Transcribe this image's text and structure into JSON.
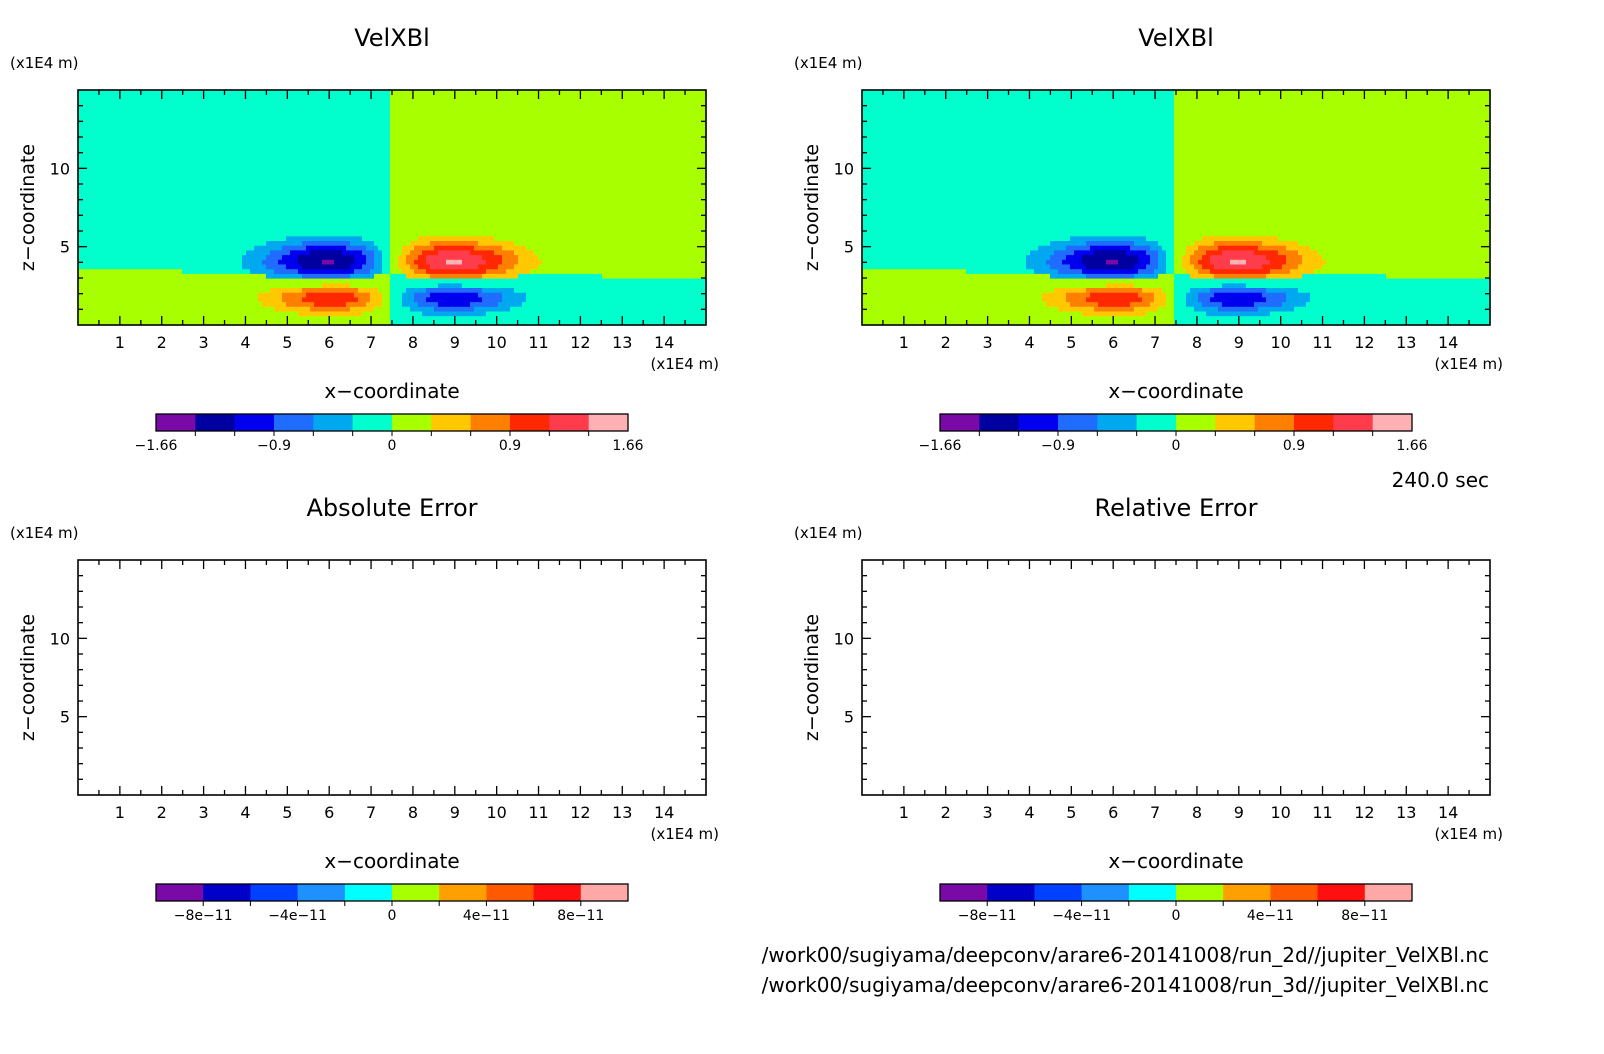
{
  "time_label": "240.0 sec",
  "file_lines": [
    "/work00/sugiyama/deepconv/arare6-20141008/run_2d//jupiter_VelXBl.nc",
    "/work00/sugiyama/deepconv/arare6-20141008/run_3d//jupiter_VelXBl.nc"
  ],
  "panels": [
    {
      "title": "VelXBl",
      "xlabel": "x−coordinate",
      "ylabel": "z−coordinate",
      "xunit": "(x1E4 m)",
      "yunit": "(x1E4 m)"
    },
    {
      "title": "VelXBl",
      "xlabel": "x−coordinate",
      "ylabel": "z−coordinate",
      "xunit": "(x1E4 m)",
      "yunit": "(x1E4 m)"
    },
    {
      "title": "Absolute Error",
      "xlabel": "x−coordinate",
      "ylabel": "z−coordinate",
      "xunit": "(x1E4 m)",
      "yunit": "(x1E4 m)"
    },
    {
      "title": "Relative Error",
      "xlabel": "x−coordinate",
      "ylabel": "z−coordinate",
      "xunit": "(x1E4 m)",
      "yunit": "(x1E4 m)"
    }
  ],
  "chart_data": [
    {
      "type": "heatmap",
      "title": "VelXBl",
      "xlabel": "x−coordinate",
      "ylabel": "z−coordinate",
      "xlim": [
        0,
        15
      ],
      "ylim": [
        0,
        15
      ],
      "x_ticks": [
        "1",
        "2",
        "3",
        "4",
        "5",
        "6",
        "7",
        "8",
        "9",
        "10",
        "11",
        "12",
        "13",
        "14"
      ],
      "y_ticks": [
        "5",
        "10"
      ],
      "levels": [
        -1.66,
        -1.5,
        -1.2,
        -0.9,
        -0.6,
        -0.3,
        0,
        0.3,
        0.6,
        0.9,
        1.2,
        1.5,
        1.66
      ],
      "colorbar_labels": [
        "−1.66",
        "−0.9",
        "0",
        "0.9",
        "1.66"
      ],
      "colors": [
        "#7a0aa8",
        "#0000a0",
        "#0000ee",
        "#1f6cff",
        "#00a8f0",
        "#00ffcc",
        "#a8ff00",
        "#ffc800",
        "#ff8000",
        "#ff2800",
        "#ff3c4c",
        "#ffb0b4"
      ]
    },
    {
      "type": "heatmap",
      "title": "VelXBl",
      "xlabel": "x−coordinate",
      "ylabel": "z−coordinate",
      "xlim": [
        0,
        15
      ],
      "ylim": [
        0,
        15
      ],
      "x_ticks": [
        "1",
        "2",
        "3",
        "4",
        "5",
        "6",
        "7",
        "8",
        "9",
        "10",
        "11",
        "12",
        "13",
        "14"
      ],
      "y_ticks": [
        "5",
        "10"
      ],
      "levels": [
        -1.66,
        -1.5,
        -1.2,
        -0.9,
        -0.6,
        -0.3,
        0,
        0.3,
        0.6,
        0.9,
        1.2,
        1.5,
        1.66
      ],
      "colorbar_labels": [
        "−1.66",
        "−0.9",
        "0",
        "0.9",
        "1.66"
      ],
      "colors": [
        "#7a0aa8",
        "#0000a0",
        "#0000ee",
        "#1f6cff",
        "#00a8f0",
        "#00ffcc",
        "#a8ff00",
        "#ffc800",
        "#ff8000",
        "#ff2800",
        "#ff3c4c",
        "#ffb0b4"
      ]
    },
    {
      "type": "heatmap",
      "title": "Absolute Error",
      "xlabel": "x−coordinate",
      "ylabel": "z−coordinate",
      "xlim": [
        0,
        15
      ],
      "ylim": [
        0,
        15
      ],
      "x_ticks": [
        "1",
        "2",
        "3",
        "4",
        "5",
        "6",
        "7",
        "8",
        "9",
        "10",
        "11",
        "12",
        "13",
        "14"
      ],
      "y_ticks": [
        "5",
        "10"
      ],
      "levels": [
        -1e-10,
        -8e-11,
        -6e-11,
        -4e-11,
        -2e-11,
        0,
        2e-11,
        4e-11,
        6e-11,
        8e-11,
        1e-10
      ],
      "colorbar_labels": [
        "−8e−11",
        "−4e−11",
        "0",
        "4e−11",
        "8e−11"
      ],
      "colors": [
        "#7a0aa8",
        "#0000c8",
        "#0040ff",
        "#1e90ff",
        "#00ffff",
        "#a8ff00",
        "#ffa000",
        "#ff5a00",
        "#ff1010",
        "#ffa8a8"
      ]
    },
    {
      "type": "heatmap",
      "title": "Relative Error",
      "xlabel": "x−coordinate",
      "ylabel": "z−coordinate",
      "xlim": [
        0,
        15
      ],
      "ylim": [
        0,
        15
      ],
      "x_ticks": [
        "1",
        "2",
        "3",
        "4",
        "5",
        "6",
        "7",
        "8",
        "9",
        "10",
        "11",
        "12",
        "13",
        "14"
      ],
      "y_ticks": [
        "5",
        "10"
      ],
      "levels": [
        -1e-10,
        -8e-11,
        -6e-11,
        -4e-11,
        -2e-11,
        0,
        2e-11,
        4e-11,
        6e-11,
        8e-11,
        1e-10
      ],
      "colorbar_labels": [
        "−8e−11",
        "−4e−11",
        "0",
        "4e−11",
        "8e−11"
      ],
      "colors": [
        "#7a0aa8",
        "#0000c8",
        "#0040ff",
        "#1e90ff",
        "#00ffff",
        "#a8ff00",
        "#ffa000",
        "#ff5a00",
        "#ff1010",
        "#ffa8a8"
      ]
    }
  ]
}
